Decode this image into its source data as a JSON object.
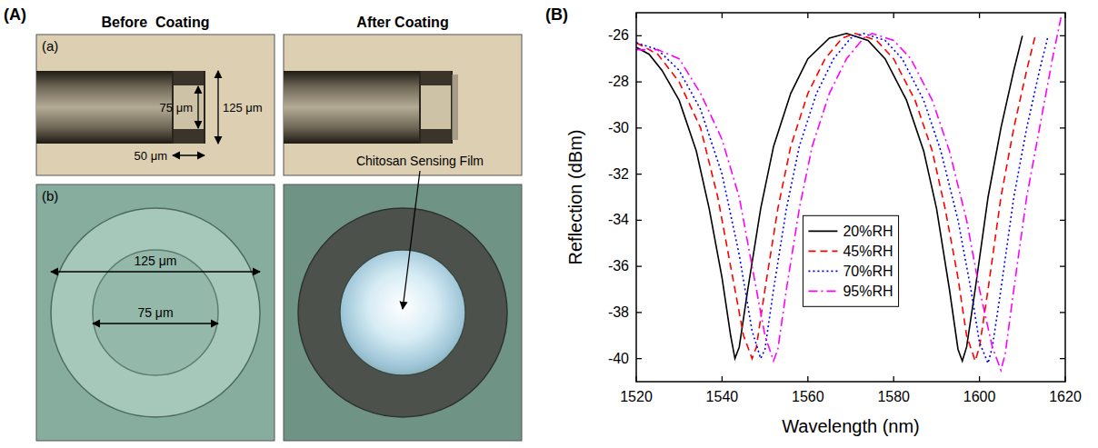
{
  "panel_a": {
    "label": "(A)",
    "columns": [
      "Before  Coating",
      "After Coating"
    ],
    "rows": [
      {
        "label": "(a)",
        "dimensions": [
          "75 μm",
          "125 μm",
          "50 μm"
        ]
      },
      {
        "label": "(b)",
        "dimensions": [
          "125 μm",
          "75 μm"
        ]
      }
    ],
    "annotation": "Chitosan Sensing Film"
  },
  "panel_b": {
    "label": "(B)"
  },
  "chart_data": {
    "type": "line",
    "x_label": "Wavelength (nm)",
    "y_label": "Reflection (dBm)",
    "xlim": [
      1520,
      1620
    ],
    "xticks": [
      1520,
      1540,
      1560,
      1580,
      1600,
      1620
    ],
    "ylim": [
      -41,
      -25
    ],
    "yticks": [
      -40,
      -38,
      -36,
      -34,
      -32,
      -30,
      -28,
      -26
    ],
    "grid": false,
    "legend": "center",
    "series": [
      {
        "name": "20%RH",
        "color": "#000000",
        "line_style": "solid",
        "x": [
          1520,
          1523,
          1526,
          1530,
          1534,
          1537,
          1540,
          1542,
          1543,
          1544,
          1546,
          1549,
          1552,
          1556,
          1560,
          1565,
          1569,
          1574,
          1578,
          1583,
          1587,
          1590,
          1593,
          1595,
          1596,
          1597,
          1599,
          1602,
          1605,
          1608,
          1610
        ],
        "values": [
          -26.5,
          -26.8,
          -27.5,
          -28.8,
          -31,
          -33.5,
          -36.5,
          -39,
          -40,
          -39.5,
          -37,
          -33.5,
          -30.8,
          -28.5,
          -27,
          -26.1,
          -25.9,
          -26.2,
          -27,
          -28.8,
          -31,
          -33.5,
          -37,
          -39.6,
          -40.1,
          -39.5,
          -37,
          -33,
          -30,
          -27.5,
          -26
        ]
      },
      {
        "name": "45%RH",
        "color": "#ff0000",
        "line_style": "dashed",
        "x": [
          1520,
          1525,
          1530,
          1535,
          1539,
          1542,
          1545,
          1547,
          1548,
          1550,
          1553,
          1556,
          1560,
          1564,
          1568,
          1571,
          1576,
          1580,
          1585,
          1589,
          1592,
          1595,
          1597,
          1599,
          1600,
          1602,
          1605,
          1608,
          1611,
          1613
        ],
        "values": [
          -26.3,
          -26.8,
          -28,
          -30,
          -33,
          -36,
          -39,
          -40,
          -39.5,
          -37,
          -33.5,
          -30.8,
          -28.5,
          -27,
          -26.1,
          -25.9,
          -26.2,
          -27,
          -28.8,
          -31,
          -33.5,
          -36.5,
          -39,
          -40.1,
          -39.5,
          -37,
          -33,
          -30,
          -27.5,
          -26
        ]
      },
      {
        "name": "70%RH",
        "color": "#0000ff",
        "line_style": "dotted",
        "x": [
          1520,
          1525,
          1530,
          1535,
          1540,
          1544,
          1547,
          1549,
          1550,
          1552,
          1555,
          1558,
          1562,
          1566,
          1570,
          1573,
          1578,
          1582,
          1587,
          1591,
          1595,
          1598,
          1600,
          1602,
          1603,
          1605,
          1608,
          1611,
          1614,
          1616
        ],
        "values": [
          -26.3,
          -26.6,
          -27.5,
          -29.2,
          -32,
          -35.5,
          -38.8,
          -40,
          -39.6,
          -37,
          -33.5,
          -30.8,
          -28.5,
          -27,
          -26.1,
          -25.9,
          -26.2,
          -27,
          -28.8,
          -31,
          -34,
          -37,
          -39.3,
          -40.2,
          -39.5,
          -37,
          -33,
          -30,
          -27.5,
          -26
        ]
      },
      {
        "name": "95%RH",
        "color": "#ff00ff",
        "line_style": "dashdot",
        "x": [
          1520,
          1525,
          1530,
          1535,
          1540,
          1544,
          1547,
          1550,
          1552,
          1553,
          1555,
          1558,
          1561,
          1565,
          1569,
          1573,
          1575,
          1580,
          1584,
          1589,
          1593,
          1597,
          1600,
          1603,
          1605,
          1606,
          1608,
          1611,
          1614,
          1617,
          1619
        ],
        "values": [
          -26.6,
          -26.6,
          -27,
          -28.5,
          -30.5,
          -33,
          -36,
          -39,
          -40.1,
          -39.6,
          -37,
          -33.5,
          -30.8,
          -28.5,
          -27,
          -26.1,
          -25.9,
          -26.2,
          -27,
          -28.8,
          -31,
          -34,
          -37,
          -39.5,
          -40.5,
          -39.8,
          -37,
          -33,
          -30,
          -27,
          -25.2
        ]
      }
    ]
  }
}
